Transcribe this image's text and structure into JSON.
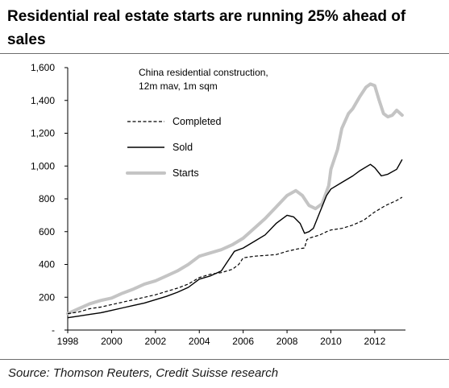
{
  "title": "Residential real estate starts are running 25% ahead of sales",
  "source": "Source: Thomson Reuters, Credit Suisse research",
  "chart_data": {
    "type": "line",
    "annotation": [
      "China residential construction,",
      "12m mav, 1m sqm"
    ],
    "ylim": [
      0,
      1600
    ],
    "yticks": [
      0,
      200,
      400,
      600,
      800,
      1000,
      1200,
      1400,
      1600
    ],
    "ytick_labels": [
      "-",
      "200",
      "400",
      "600",
      "800",
      "1,000",
      "1,200",
      "1,400",
      "1,600"
    ],
    "xlim": [
      1998,
      2013.4
    ],
    "xticks": [
      1998,
      2000,
      2002,
      2004,
      2006,
      2008,
      2010,
      2012
    ],
    "xtick_labels": [
      "1998",
      "2000",
      "2002",
      "2004",
      "2006",
      "2008",
      "2010",
      "2012"
    ],
    "grid": false,
    "legend_position": "upper-left",
    "series": [
      {
        "name": "Completed",
        "style": "dashed",
        "color": "#000000",
        "x": [
          1998,
          1998.5,
          1999,
          1999.5,
          2000,
          2000.5,
          2001,
          2001.5,
          2002,
          2002.5,
          2003,
          2003.5,
          2004,
          2004.5,
          2005,
          2005.5,
          2005.8,
          2006,
          2006.5,
          2007,
          2007.5,
          2008,
          2008.5,
          2008.8,
          2008.9,
          2009,
          2009.5,
          2009.8,
          2010,
          2010.5,
          2011,
          2011.5,
          2012,
          2012.5,
          2013,
          2013.25
        ],
        "y": [
          100,
          110,
          130,
          140,
          155,
          170,
          185,
          200,
          215,
          235,
          255,
          280,
          320,
          340,
          350,
          370,
          400,
          440,
          450,
          455,
          460,
          480,
          495,
          500,
          550,
          560,
          580,
          600,
          610,
          620,
          640,
          670,
          720,
          760,
          790,
          810
        ]
      },
      {
        "name": "Sold",
        "style": "solid",
        "color": "#000000",
        "x": [
          1998,
          1998.5,
          1999,
          1999.5,
          2000,
          2000.5,
          2001,
          2001.5,
          2002,
          2002.5,
          2003,
          2003.5,
          2004,
          2004.5,
          2005,
          2005.3,
          2005.6,
          2006,
          2006.5,
          2007,
          2007.5,
          2008,
          2008.3,
          2008.6,
          2008.8,
          2009,
          2009.2,
          2009.5,
          2009.8,
          2010,
          2010.5,
          2011,
          2011.3,
          2011.8,
          2012,
          2012.3,
          2012.6,
          2013,
          2013.25
        ],
        "y": [
          75,
          85,
          95,
          105,
          120,
          135,
          150,
          165,
          185,
          205,
          230,
          260,
          310,
          330,
          360,
          420,
          480,
          500,
          540,
          580,
          650,
          700,
          690,
          650,
          590,
          600,
          620,
          720,
          820,
          860,
          900,
          940,
          970,
          1010,
          990,
          940,
          950,
          980,
          1040
        ]
      },
      {
        "name": "Starts",
        "style": "solid-thick",
        "color": "#c4c4c4",
        "x": [
          1998,
          1998.5,
          1999,
          1999.5,
          2000,
          2000.5,
          2001,
          2001.5,
          2002,
          2002.5,
          2003,
          2003.5,
          2004,
          2004.5,
          2005,
          2005.5,
          2006,
          2006.5,
          2007,
          2007.5,
          2008,
          2008.4,
          2008.7,
          2009,
          2009.3,
          2009.6,
          2009.9,
          2010,
          2010.3,
          2010.5,
          2010.8,
          2011,
          2011.3,
          2011.6,
          2011.8,
          2012,
          2012.2,
          2012.4,
          2012.6,
          2012.8,
          2013,
          2013.25
        ],
        "y": [
          100,
          130,
          160,
          180,
          195,
          225,
          250,
          280,
          300,
          330,
          360,
          400,
          450,
          470,
          490,
          520,
          560,
          620,
          680,
          750,
          820,
          850,
          820,
          760,
          740,
          770,
          880,
          980,
          1100,
          1230,
          1320,
          1350,
          1420,
          1480,
          1500,
          1490,
          1400,
          1320,
          1300,
          1310,
          1340,
          1310
        ]
      }
    ]
  }
}
